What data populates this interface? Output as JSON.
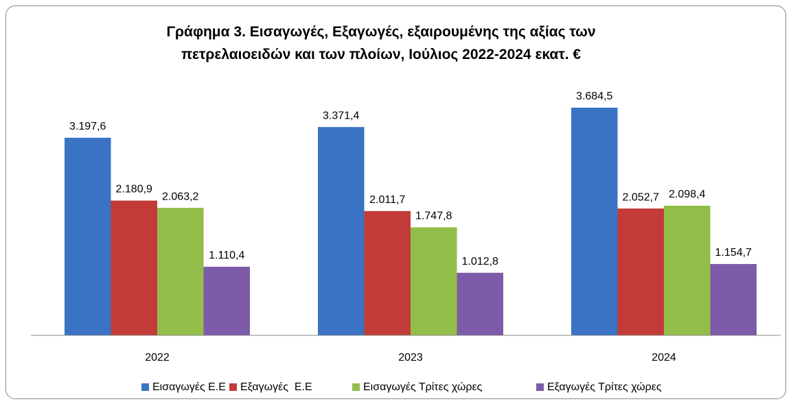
{
  "chart_data": {
    "type": "bar",
    "title": "Γράφημα 3. Εισαγωγές, Εξαγωγές, εξαιρουμένης της αξίας των\nπετρελαιοειδών και των πλοίων, Ιούλιος 2022-2024 εκατ. €",
    "categories": [
      "2022",
      "2023",
      "2024"
    ],
    "series": [
      {
        "name": "Εισαγωγές Ε.Ε",
        "color": "#3a73c4",
        "values": [
          3197.6,
          3371.4,
          3684.5
        ],
        "value_labels": [
          "3.197,6",
          "3.371,4",
          "3.684,5"
        ]
      },
      {
        "name": "Εξαγωγές  Ε.Ε",
        "color": "#c23b38",
        "values": [
          2180.9,
          2011.7,
          2052.7
        ],
        "value_labels": [
          "2.180,9",
          "2.011,7",
          "2.052,7"
        ]
      },
      {
        "name": "Εισαγωγές Τρίτες χώρες",
        "color": "#93be4a",
        "values": [
          2063.2,
          1747.8,
          2098.4
        ],
        "value_labels": [
          "2.063,2",
          "1.747,8",
          "2.098,4"
        ]
      },
      {
        "name": "Εξαγωγές Τρίτες χώρες",
        "color": "#7c5ba8",
        "values": [
          1110.4,
          1012.8,
          1154.7
        ],
        "value_labels": [
          "1.110,4",
          "1.012,8",
          "1.154,7"
        ]
      }
    ],
    "legend": "bottom"
  }
}
